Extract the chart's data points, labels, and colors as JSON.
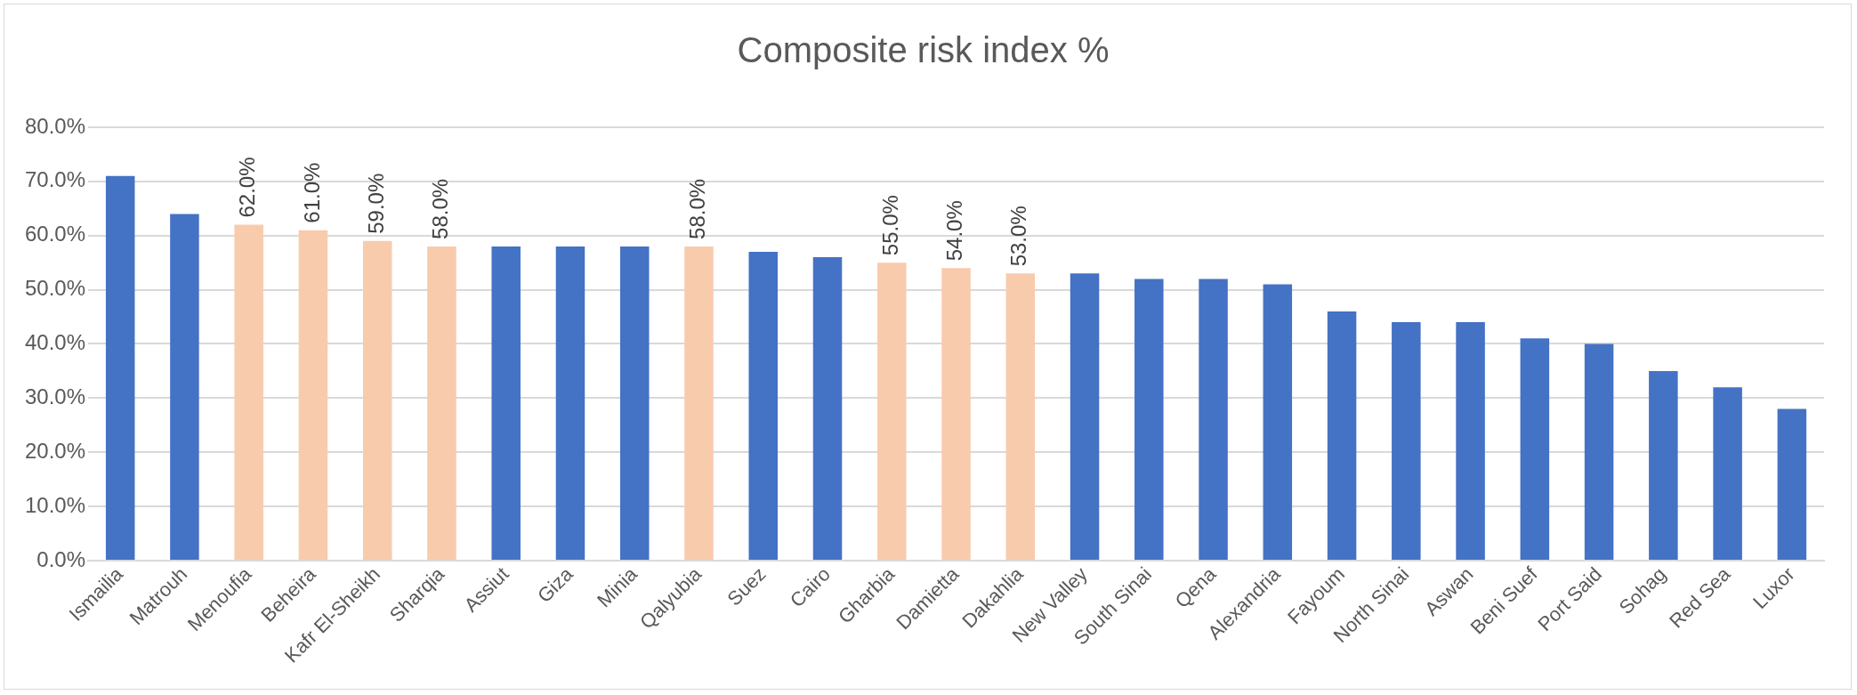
{
  "chart_data": {
    "type": "bar",
    "title": "Composite risk index %",
    "categories": [
      "Ismailia",
      "Matrouh",
      "Menoufia",
      "Beheira",
      "Kafr El-Sheikh",
      "Sharqia",
      "Assiut",
      "Giza",
      "Minia",
      "Qalyubia",
      "Suez",
      "Cairo",
      "Gharbia",
      "Damietta",
      "Dakahlia",
      "New Valley",
      "South Sinai",
      "Qena",
      "Alexandria",
      "Fayoum",
      "North Sinai",
      "Aswan",
      "Beni Suef",
      "Port Said",
      "Sohag",
      "Red Sea",
      "Luxor"
    ],
    "values": [
      71,
      64,
      62,
      61,
      59,
      58,
      58,
      58,
      58,
      58,
      57,
      56,
      55,
      54,
      53,
      53,
      52,
      52,
      51,
      46,
      44,
      44,
      41,
      40,
      35,
      32,
      28
    ],
    "colors": [
      "#4472c4",
      "#4472c4",
      "#f8cbad",
      "#f8cbad",
      "#f8cbad",
      "#f8cbad",
      "#4472c4",
      "#4472c4",
      "#4472c4",
      "#f8cbad",
      "#4472c4",
      "#4472c4",
      "#f8cbad",
      "#f8cbad",
      "#f8cbad",
      "#4472c4",
      "#4472c4",
      "#4472c4",
      "#4472c4",
      "#4472c4",
      "#4472c4",
      "#4472c4",
      "#4472c4",
      "#4472c4",
      "#4472c4",
      "#4472c4",
      "#4472c4"
    ],
    "value_labels": [
      null,
      null,
      "62.0%",
      "61.0%",
      "59.0%",
      "58.0%",
      null,
      null,
      null,
      "58.0%",
      null,
      null,
      "55.0%",
      "54.0%",
      "53.0%",
      null,
      null,
      null,
      null,
      null,
      null,
      null,
      null,
      null,
      null,
      null,
      null
    ],
    "ylim": [
      0,
      80
    ],
    "yticks": [
      {
        "value": 0,
        "label": "0.0%"
      },
      {
        "value": 10,
        "label": "10.0%"
      },
      {
        "value": 20,
        "label": "20.0%"
      },
      {
        "value": 30,
        "label": "30.0%"
      },
      {
        "value": 40,
        "label": "40.0%"
      },
      {
        "value": 50,
        "label": "50.0%"
      },
      {
        "value": 60,
        "label": "60.0%"
      },
      {
        "value": 70,
        "label": "70.0%"
      },
      {
        "value": 80,
        "label": "80.0%"
      }
    ],
    "grid": "y",
    "legend": false
  }
}
